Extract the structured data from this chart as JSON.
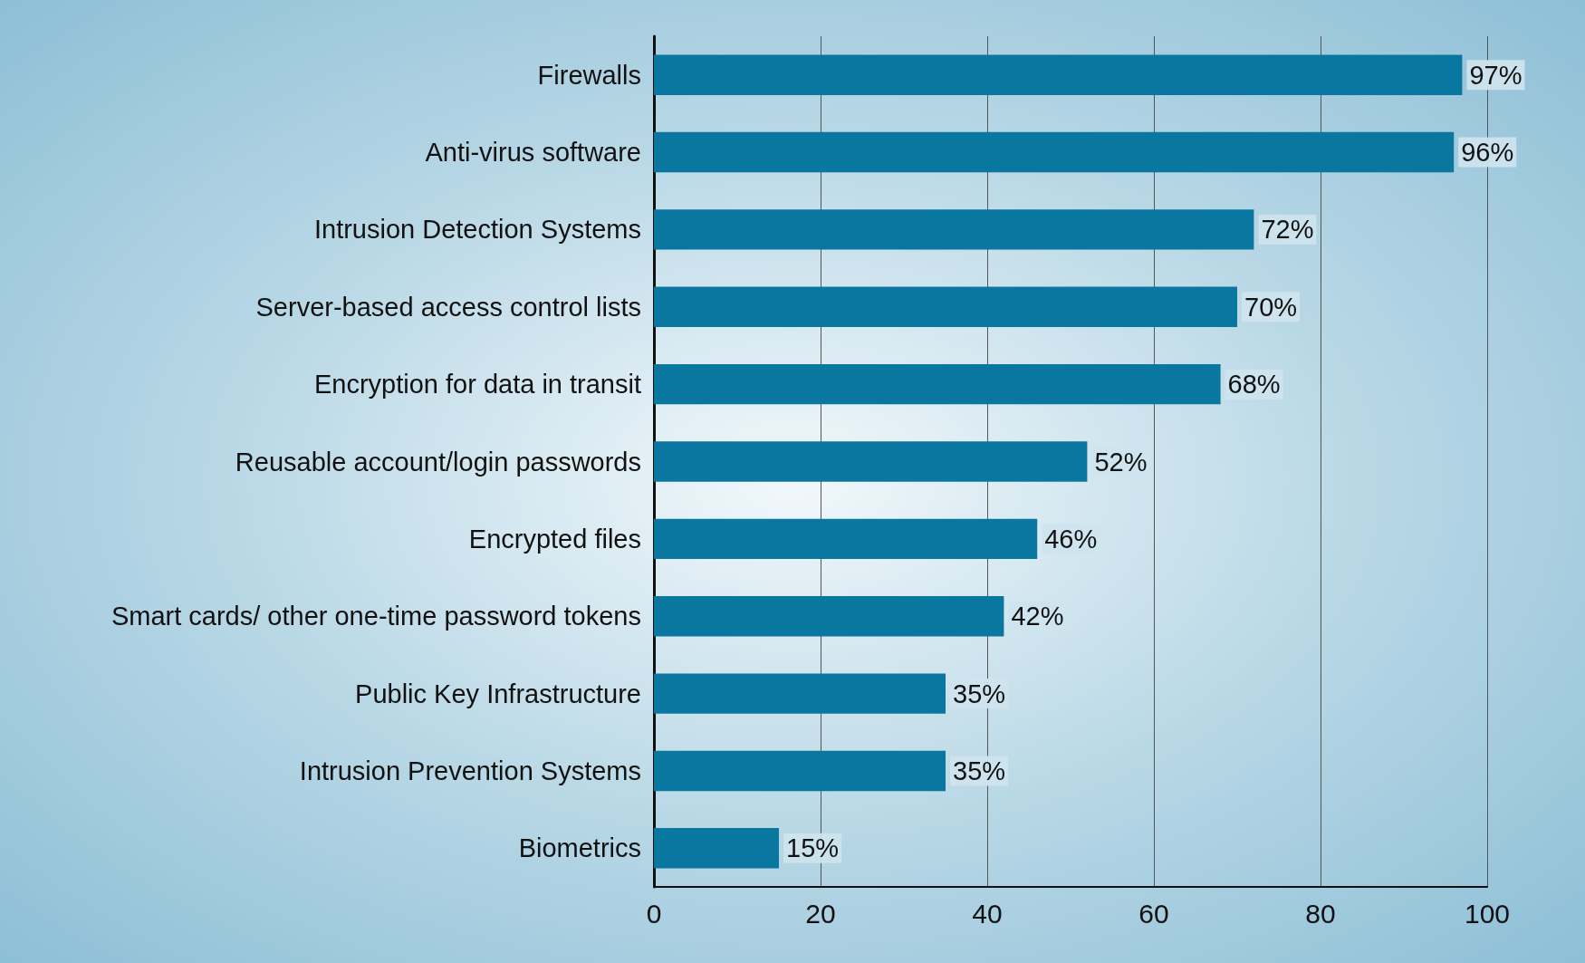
{
  "chart_data": {
    "type": "bar",
    "orientation": "horizontal",
    "categories": [
      "Firewalls",
      "Anti-virus software",
      "Intrusion Detection Systems",
      "Server-based access control lists",
      "Encryption for data in transit",
      "Reusable account/login passwords",
      "Encrypted files",
      "Smart cards/ other one-time password tokens",
      "Public Key Infrastructure",
      "Intrusion Prevention Systems",
      "Biometrics"
    ],
    "values": [
      97,
      96,
      72,
      70,
      68,
      52,
      46,
      42,
      35,
      35,
      15
    ],
    "value_labels": [
      "97%",
      "96%",
      "72%",
      "70%",
      "68%",
      "52%",
      "46%",
      "42%",
      "35%",
      "35%",
      "15%"
    ],
    "color": "#0a77a0",
    "xlim": [
      0,
      100
    ],
    "xticks": [
      0,
      20,
      40,
      60,
      80,
      100
    ],
    "grid": "x"
  }
}
